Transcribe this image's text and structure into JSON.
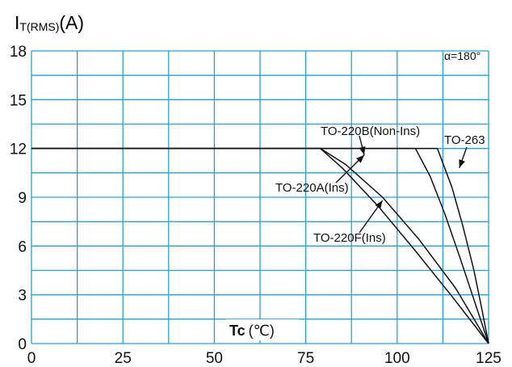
{
  "chart_data": {
    "type": "line",
    "ylabel_main": "I",
    "ylabel_sub": "T(RMS)",
    "ylabel_unit": "(A)",
    "xlabel_main": "Tc",
    "xlabel_unit": "(℃)",
    "condition": "α=180°",
    "xlim": [
      0,
      125
    ],
    "ylim": [
      0,
      18
    ],
    "x_ticks": [
      "0",
      "25",
      "50",
      "75",
      "100",
      "125"
    ],
    "y_ticks": [
      "0",
      "3",
      "6",
      "9",
      "12",
      "15",
      "18"
    ],
    "grid": true,
    "series": [
      {
        "name": "TO-220F(Ins)",
        "points": [
          [
            0,
            12
          ],
          [
            79,
            12
          ],
          [
            85,
            10.8
          ],
          [
            95,
            8.4
          ],
          [
            105,
            5.7
          ],
          [
            115,
            2.9
          ],
          [
            125,
            0
          ]
        ]
      },
      {
        "name": "TO-220A(Ins)",
        "points": [
          [
            0,
            12
          ],
          [
            79,
            12
          ],
          [
            86,
            11
          ],
          [
            96,
            9
          ],
          [
            106,
            6.4
          ],
          [
            116,
            3.4
          ],
          [
            125,
            0
          ]
        ]
      },
      {
        "name": "TO-220B(Non-Ins)",
        "points": [
          [
            0,
            12
          ],
          [
            105,
            12
          ],
          [
            109,
            10.3
          ],
          [
            113,
            8
          ],
          [
            117,
            5.4
          ],
          [
            121,
            2.7
          ],
          [
            125,
            0
          ]
        ]
      },
      {
        "name": "TO-263",
        "points": [
          [
            0,
            12
          ],
          [
            111,
            12
          ],
          [
            115,
            9.6
          ],
          [
            118,
            7.2
          ],
          [
            121,
            4.5
          ],
          [
            123,
            2.3
          ],
          [
            125,
            0
          ]
        ]
      }
    ],
    "annotations": [
      {
        "text": "TO-220B(Non-Ins)",
        "arrow_to": [
          91,
          11.6
        ]
      },
      {
        "text": "TO-220A(Ins)",
        "arrow_to": [
          91,
          11.6
        ]
      },
      {
        "text": "TO-220F(Ins)",
        "arrow_to": [
          96,
          8.8
        ]
      },
      {
        "text": "TO-263",
        "arrow_to": [
          117,
          10.8
        ]
      }
    ],
    "colors": {
      "grid": "#1fa3d6",
      "line": "#111111"
    }
  }
}
